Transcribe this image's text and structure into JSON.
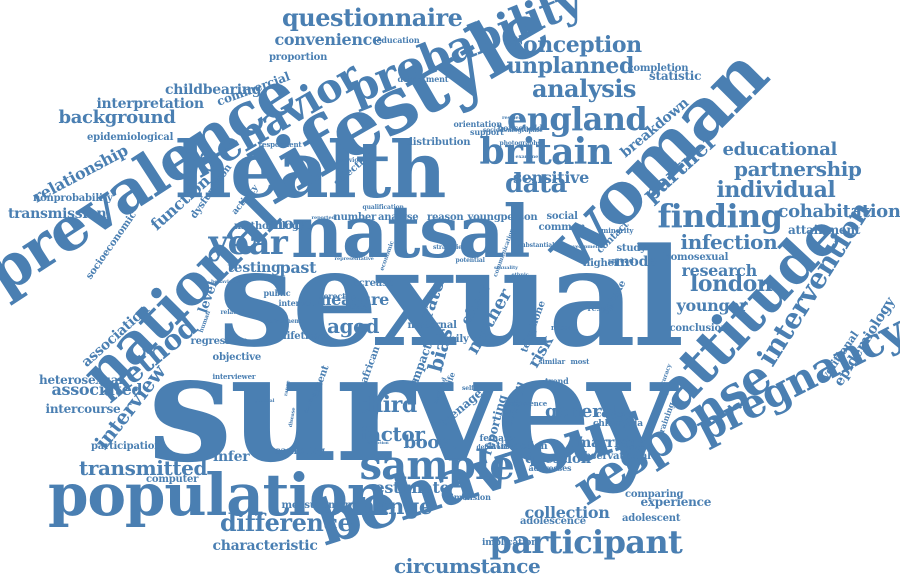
{
  "colors": {
    "word": "#4a7fb2",
    "background": "#ffffff"
  },
  "words": [
    {
      "text": "survey"
    },
    {
      "text": "sexual"
    },
    {
      "text": "health"
    },
    {
      "text": "lifestyle"
    },
    {
      "text": "natsal"
    },
    {
      "text": "woman"
    },
    {
      "text": "behaviour"
    },
    {
      "text": "population"
    },
    {
      "text": "prevalence"
    },
    {
      "text": "national"
    },
    {
      "text": "attitude"
    },
    {
      "text": "response"
    },
    {
      "text": "sample"
    },
    {
      "text": "participant"
    },
    {
      "text": "pregnancy"
    },
    {
      "text": "probability"
    },
    {
      "text": "behavior"
    },
    {
      "text": "britain"
    },
    {
      "text": "england"
    },
    {
      "text": "intervention"
    },
    {
      "text": "year"
    },
    {
      "text": "finding"
    },
    {
      "text": "questionnaire"
    },
    {
      "text": "method"
    },
    {
      "text": "data"
    },
    {
      "text": "analysis"
    },
    {
      "text": "partner"
    },
    {
      "text": "difference"
    },
    {
      "text": "circumstance"
    },
    {
      "text": "conception"
    },
    {
      "text": "unplanned"
    },
    {
      "text": "individual"
    },
    {
      "text": "partnership"
    },
    {
      "text": "change"
    },
    {
      "text": "interview"
    },
    {
      "text": "infection"
    },
    {
      "text": "london"
    },
    {
      "text": "transmitted"
    },
    {
      "text": "third"
    },
    {
      "text": "factor"
    },
    {
      "text": "general"
    },
    {
      "text": "aged"
    },
    {
      "text": "background"
    },
    {
      "text": "educational"
    },
    {
      "text": "cohabitation"
    },
    {
      "text": "relationship"
    },
    {
      "text": "function"
    },
    {
      "text": "convenience"
    },
    {
      "text": "associated"
    },
    {
      "text": "association"
    },
    {
      "text": "epidemiology"
    },
    {
      "text": "research"
    },
    {
      "text": "younger"
    },
    {
      "text": "boost"
    },
    {
      "text": "estimate"
    },
    {
      "text": "collection"
    },
    {
      "text": "characteristic"
    },
    {
      "text": "sensitive"
    },
    {
      "text": "breakdown"
    },
    {
      "text": "childbearing"
    },
    {
      "text": "interpretation"
    },
    {
      "text": "transmission"
    },
    {
      "text": "mode"
    },
    {
      "text": "past"
    },
    {
      "text": "more"
    },
    {
      "text": "testing"
    },
    {
      "text": "infer"
    },
    {
      "text": "marriage"
    },
    {
      "text": "question"
    },
    {
      "text": "measure"
    },
    {
      "text": "bias"
    },
    {
      "text": "rate"
    },
    {
      "text": "risk"
    },
    {
      "text": "mother"
    },
    {
      "text": "effect"
    },
    {
      "text": "level"
    },
    {
      "text": "heterosexual"
    },
    {
      "text": "intercourse"
    },
    {
      "text": "regression"
    },
    {
      "text": "objective"
    },
    {
      "text": "lifetime"
    },
    {
      "text": "statistic"
    },
    {
      "text": "completion"
    },
    {
      "text": "commercial"
    },
    {
      "text": "proportion"
    },
    {
      "text": "education"
    },
    {
      "text": "department"
    },
    {
      "text": "distribution"
    },
    {
      "text": "selection"
    },
    {
      "text": "activity"
    },
    {
      "text": "attainment"
    },
    {
      "text": "volitional"
    },
    {
      "text": "experience"
    },
    {
      "text": "adolescence"
    },
    {
      "text": "adolescent"
    },
    {
      "text": "measurement"
    },
    {
      "text": "sampling"
    },
    {
      "text": "computer"
    },
    {
      "text": "participation"
    },
    {
      "text": "comparing"
    },
    {
      "text": "observational"
    },
    {
      "text": "satisfaction"
    },
    {
      "text": "reporting"
    },
    {
      "text": "teenage"
    },
    {
      "text": "council"
    },
    {
      "text": "female"
    },
    {
      "text": "chlamydia"
    },
    {
      "text": "context"
    },
    {
      "text": "dimension"
    },
    {
      "text": "implication"
    },
    {
      "text": "epidemiological"
    },
    {
      "text": "nonprobability"
    },
    {
      "text": "dysfunction"
    },
    {
      "text": "socioeconomic"
    },
    {
      "text": "methodology"
    },
    {
      "text": "number"
    },
    {
      "text": "analyse"
    },
    {
      "text": "reason"
    },
    {
      "text": "young"
    },
    {
      "text": "person"
    },
    {
      "text": "study"
    },
    {
      "text": "higher"
    },
    {
      "text": "contact"
    },
    {
      "text": "common"
    },
    {
      "text": "social"
    },
    {
      "text": "support"
    },
    {
      "text": "orientation"
    },
    {
      "text": "household"
    },
    {
      "text": "respondent"
    },
    {
      "text": "interviewer"
    },
    {
      "text": "homosexual"
    },
    {
      "text": "conclusion"
    },
    {
      "text": "telephone"
    },
    {
      "text": "result"
    },
    {
      "text": "uptake"
    },
    {
      "text": "minority"
    },
    {
      "text": "addresses"
    },
    {
      "text": "deprivation"
    },
    {
      "text": "occurrence"
    },
    {
      "text": "similar"
    },
    {
      "text": "recent"
    },
    {
      "text": "spread"
    },
    {
      "text": "public"
    },
    {
      "text": "internet"
    },
    {
      "text": "erectile"
    },
    {
      "text": "maternal"
    },
    {
      "text": "family"
    },
    {
      "text": "self"
    },
    {
      "text": "impact"
    },
    {
      "text": "african"
    },
    {
      "text": "trend"
    },
    {
      "text": "most"
    },
    {
      "text": "training"
    },
    {
      "text": "accuracy"
    },
    {
      "text": "sociodemographic"
    },
    {
      "text": "photographs"
    },
    {
      "text": "resident"
    },
    {
      "text": "previous"
    },
    {
      "text": "qualification"
    },
    {
      "text": "reported"
    },
    {
      "text": "examine"
    },
    {
      "text": "related"
    },
    {
      "text": "component"
    },
    {
      "text": "consistency"
    },
    {
      "text": "increase"
    },
    {
      "text": "extent"
    },
    {
      "text": "life"
    },
    {
      "text": "scotland"
    },
    {
      "text": "funding"
    },
    {
      "text": "attraction"
    },
    {
      "text": "potential"
    },
    {
      "text": "strategies"
    },
    {
      "text": "communication"
    },
    {
      "text": "human"
    },
    {
      "text": "behavioral"
    },
    {
      "text": "economic"
    },
    {
      "text": "substantial"
    },
    {
      "text": "development"
    },
    {
      "text": "ethnic"
    },
    {
      "text": "disease"
    },
    {
      "text": "range"
    },
    {
      "text": "genital"
    },
    {
      "text": "representative"
    },
    {
      "text": "sexuality"
    },
    {
      "text": "wellbeing"
    },
    {
      "text": "problem"
    },
    {
      "text": "multiple"
    }
  ]
}
